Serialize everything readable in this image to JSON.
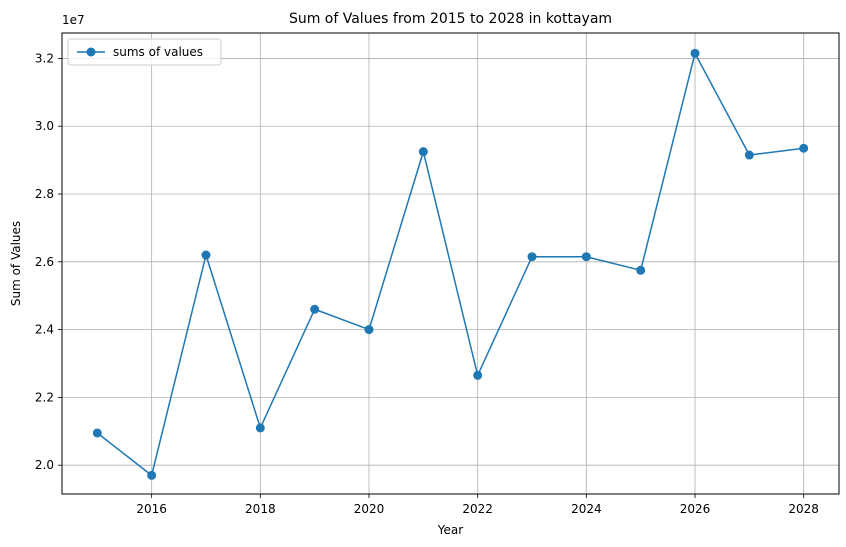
{
  "chart_data": {
    "type": "line",
    "title": "Sum of Values from 2015 to 2028 in kottayam",
    "xlabel": "Year",
    "ylabel": "Sum of Values",
    "y_offset_label": "1e7",
    "x_ticks": [
      "2016",
      "2018",
      "2020",
      "2022",
      "2024",
      "2026",
      "2028"
    ],
    "y_ticks": [
      "2.0",
      "2.2",
      "2.4",
      "2.6",
      "2.8",
      "3.0",
      "3.2"
    ],
    "xlim": [
      2014.35,
      2028.65
    ],
    "ylim": [
      19150000,
      32750000
    ],
    "grid": true,
    "legend_position": "top-left",
    "color": "#1f77b4",
    "series": [
      {
        "name": "sums of values",
        "x": [
          2015,
          2016,
          2017,
          2018,
          2019,
          2020,
          2021,
          2022,
          2023,
          2024,
          2025,
          2026,
          2027,
          2028
        ],
        "y": [
          20950000,
          19700000,
          26200000,
          21100000,
          24600000,
          24000000,
          29250000,
          22650000,
          26150000,
          26150000,
          25750000,
          32150000,
          29150000,
          29350000
        ]
      }
    ]
  }
}
